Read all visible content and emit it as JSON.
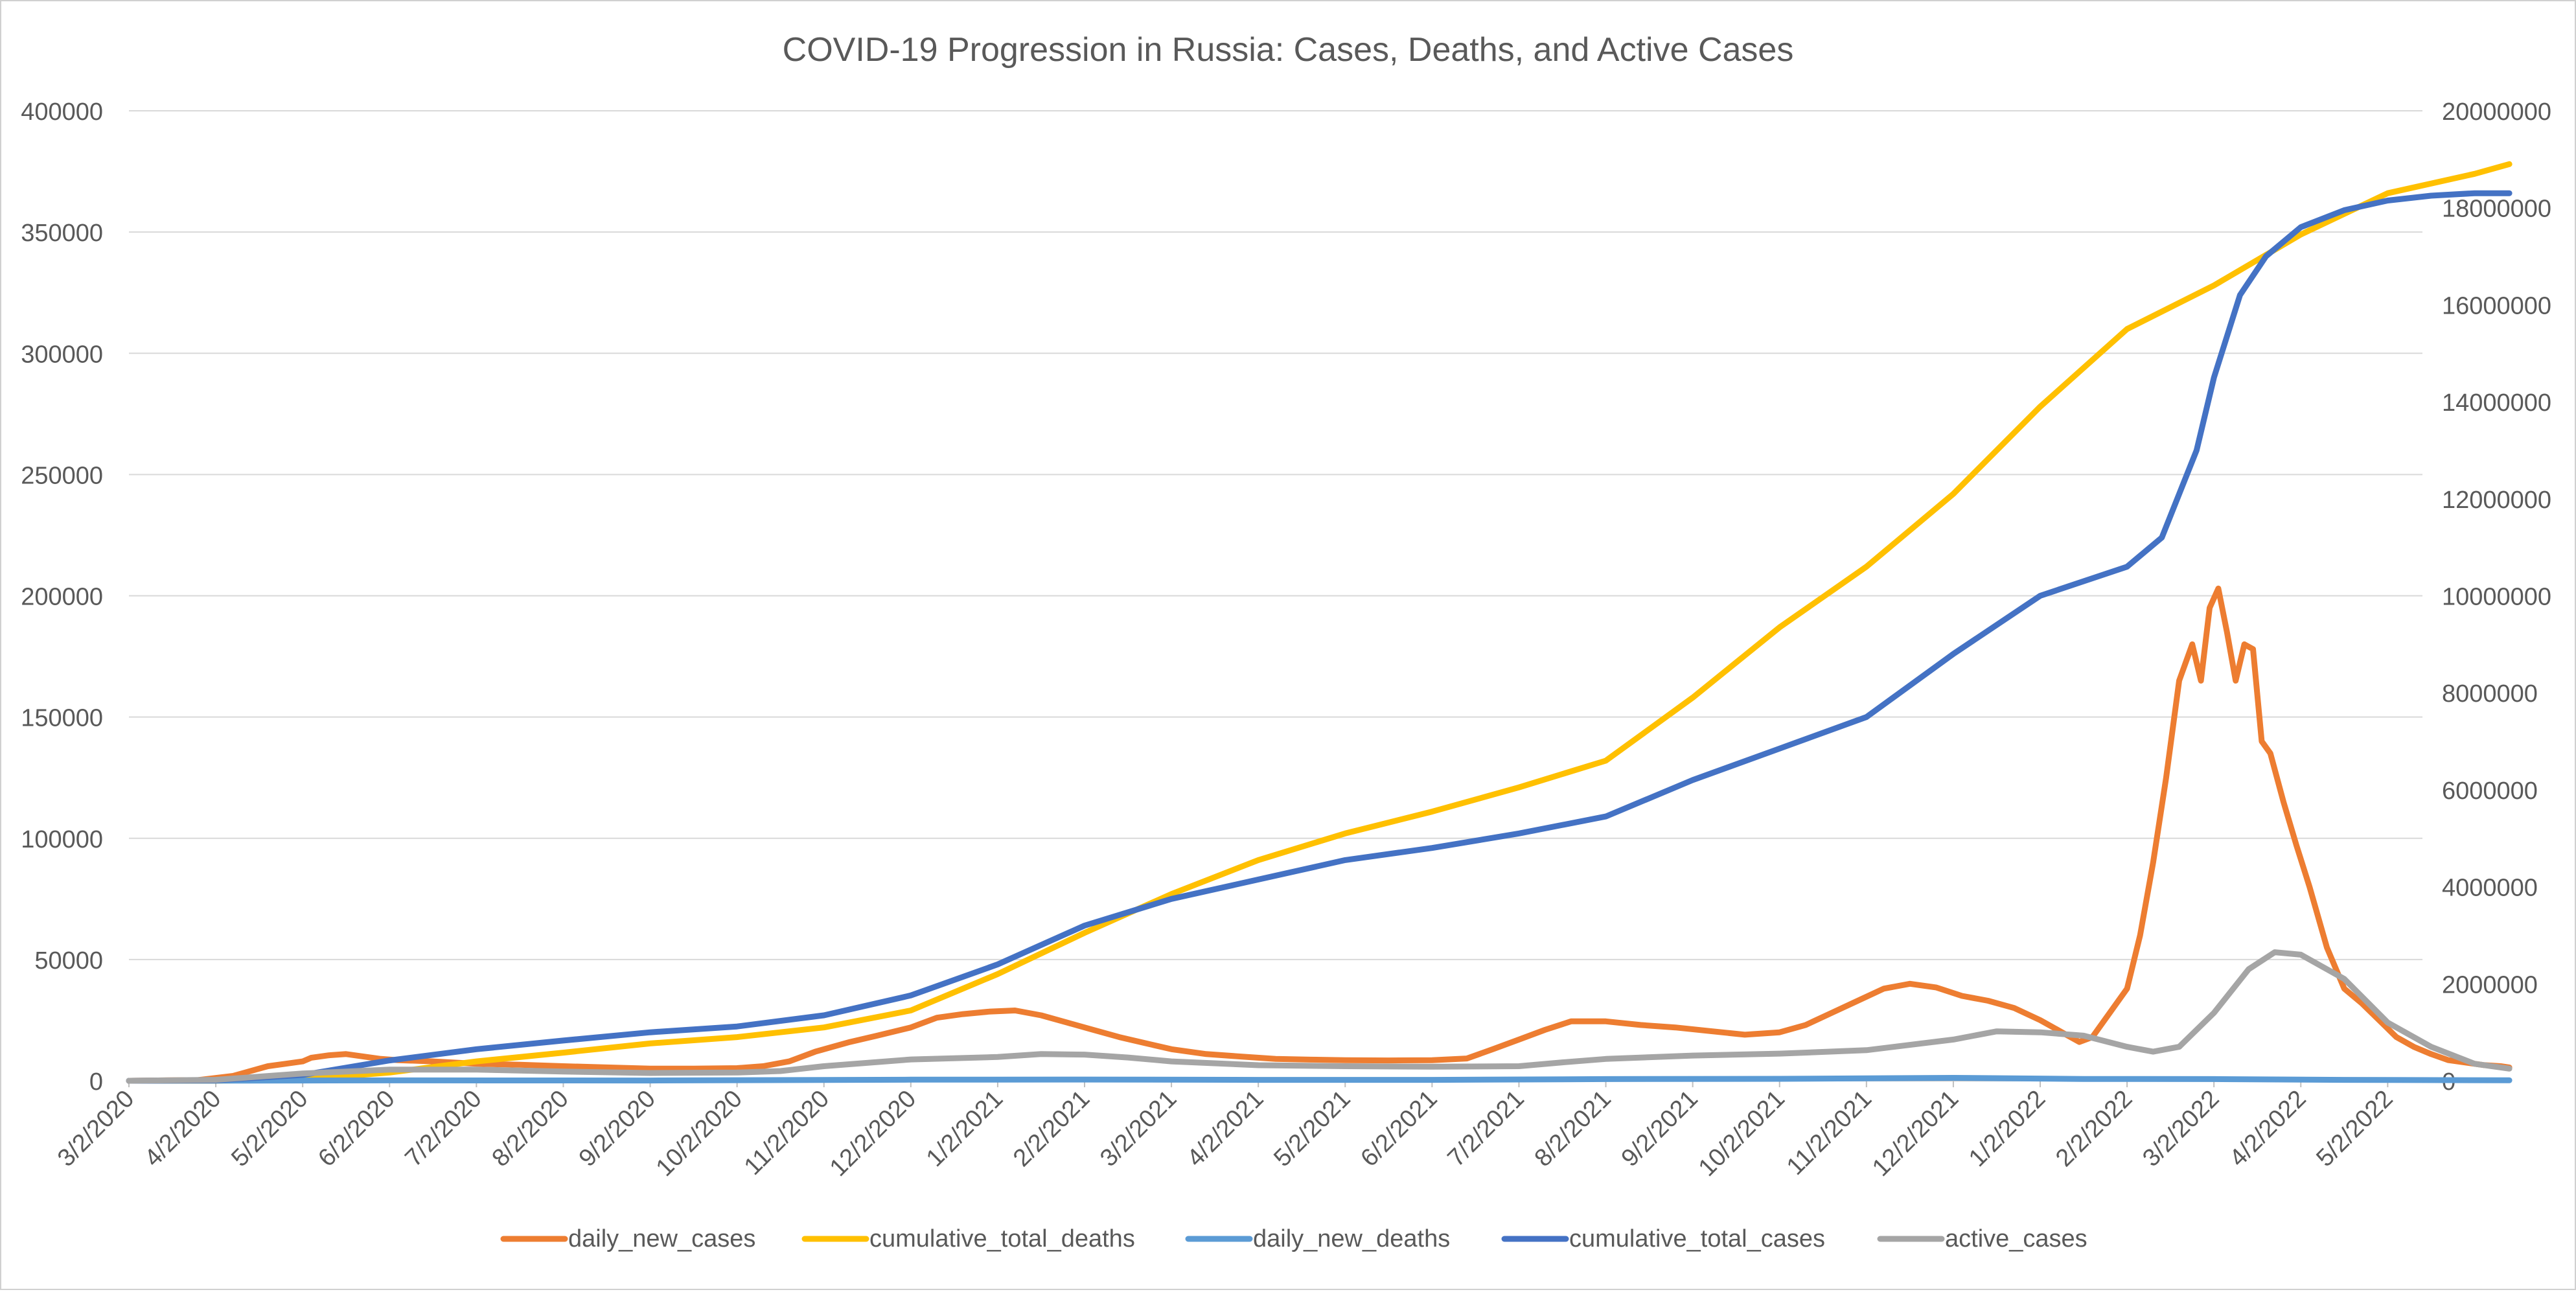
{
  "chart_data": {
    "type": "line",
    "title": "COVID-19 Progression in Russia: Cases, Deaths, and Active Cases",
    "x_tick_labels": [
      "3/2/2020",
      "4/2/2020",
      "5/2/2020",
      "6/2/2020",
      "7/2/2020",
      "8/2/2020",
      "9/2/2020",
      "10/2/2020",
      "11/2/2020",
      "12/2/2020",
      "1/2/2021",
      "2/2/2021",
      "3/2/2021",
      "4/2/2021",
      "5/2/2021",
      "6/2/2021",
      "7/2/2021",
      "8/2/2021",
      "9/2/2021",
      "10/2/2021",
      "11/2/2021",
      "12/2/2021",
      "1/2/2022",
      "2/2/2022",
      "3/2/2022",
      "4/2/2022",
      "5/2/2022"
    ],
    "x_unit": "months since 3/2/2020",
    "x_range": [
      0,
      26.4
    ],
    "y_left": {
      "min": 0,
      "max": 400000,
      "ticks": [
        0,
        50000,
        100000,
        150000,
        200000,
        250000,
        300000,
        350000,
        400000
      ]
    },
    "y_right": {
      "min": 0,
      "max": 20000000,
      "ticks": [
        0,
        2000000,
        4000000,
        6000000,
        8000000,
        10000000,
        12000000,
        14000000,
        16000000,
        18000000,
        20000000
      ]
    },
    "grid": true,
    "legend_position": "bottom",
    "series": [
      {
        "name": "daily_new_cases",
        "axis": "left",
        "color": "#ED7D31",
        "points": [
          [
            0,
            0
          ],
          [
            0.8,
            300
          ],
          [
            1.2,
            2000
          ],
          [
            1.6,
            6000
          ],
          [
            1.8,
            7000
          ],
          [
            2.0,
            8000
          ],
          [
            2.1,
            9500
          ],
          [
            2.3,
            10500
          ],
          [
            2.5,
            11000
          ],
          [
            2.7,
            10000
          ],
          [
            2.9,
            9000
          ],
          [
            3.1,
            8500
          ],
          [
            3.5,
            8000
          ],
          [
            4.0,
            7000
          ],
          [
            4.5,
            6600
          ],
          [
            5.0,
            6000
          ],
          [
            5.5,
            5500
          ],
          [
            6.0,
            5000
          ],
          [
            6.5,
            5000
          ],
          [
            7.0,
            5200
          ],
          [
            7.3,
            6000
          ],
          [
            7.6,
            8000
          ],
          [
            7.9,
            12000
          ],
          [
            8.3,
            16000
          ],
          [
            8.6,
            18500
          ],
          [
            9.0,
            22000
          ],
          [
            9.3,
            26000
          ],
          [
            9.6,
            27500
          ],
          [
            9.9,
            28500
          ],
          [
            10.2,
            29000
          ],
          [
            10.5,
            27000
          ],
          [
            10.8,
            24000
          ],
          [
            11.1,
            21000
          ],
          [
            11.4,
            18000
          ],
          [
            11.7,
            15500
          ],
          [
            12.0,
            13000
          ],
          [
            12.4,
            11000
          ],
          [
            12.8,
            10000
          ],
          [
            13.2,
            9000
          ],
          [
            13.6,
            8700
          ],
          [
            14.0,
            8500
          ],
          [
            14.5,
            8400
          ],
          [
            15.0,
            8500
          ],
          [
            15.4,
            9200
          ],
          [
            15.7,
            13000
          ],
          [
            16.0,
            17000
          ],
          [
            16.3,
            21000
          ],
          [
            16.6,
            24500
          ],
          [
            17.0,
            24500
          ],
          [
            17.4,
            23000
          ],
          [
            17.8,
            22000
          ],
          [
            18.2,
            20500
          ],
          [
            18.6,
            19000
          ],
          [
            19.0,
            20000
          ],
          [
            19.3,
            23000
          ],
          [
            19.6,
            28000
          ],
          [
            19.9,
            33000
          ],
          [
            20.2,
            38000
          ],
          [
            20.5,
            40000
          ],
          [
            20.8,
            38500
          ],
          [
            21.1,
            35000
          ],
          [
            21.4,
            33000
          ],
          [
            21.7,
            30000
          ],
          [
            22.0,
            25000
          ],
          [
            22.3,
            19000
          ],
          [
            22.45,
            16000
          ],
          [
            22.6,
            18000
          ],
          [
            22.8,
            28000
          ],
          [
            23.0,
            38000
          ],
          [
            23.15,
            60000
          ],
          [
            23.3,
            90000
          ],
          [
            23.45,
            125000
          ],
          [
            23.6,
            165000
          ],
          [
            23.75,
            180000
          ],
          [
            23.85,
            165000
          ],
          [
            23.95,
            195000
          ],
          [
            24.05,
            203000
          ],
          [
            24.15,
            185000
          ],
          [
            24.25,
            165000
          ],
          [
            24.35,
            180000
          ],
          [
            24.45,
            178000
          ],
          [
            24.55,
            140000
          ],
          [
            24.65,
            135000
          ],
          [
            24.8,
            115000
          ],
          [
            24.95,
            97000
          ],
          [
            25.1,
            80000
          ],
          [
            25.3,
            55000
          ],
          [
            25.5,
            38000
          ],
          [
            25.7,
            32000
          ],
          [
            25.9,
            25000
          ],
          [
            26.1,
            18000
          ],
          [
            26.3,
            14000
          ],
          [
            26.5,
            11000
          ],
          [
            26.7,
            8500
          ],
          [
            26.9,
            7500
          ],
          [
            27.1,
            6500
          ],
          [
            27.3,
            6000
          ],
          [
            27.4,
            5500
          ]
        ]
      },
      {
        "name": "cumulative_total_deaths",
        "axis": "right",
        "color": "#FFC000",
        "points": [
          [
            0,
            0
          ],
          [
            1.0,
            2000
          ],
          [
            2.0,
            25000
          ],
          [
            3.0,
            170000
          ],
          [
            4.0,
            400000
          ],
          [
            5.0,
            580000
          ],
          [
            6.0,
            770000
          ],
          [
            7.0,
            900000
          ],
          [
            8.0,
            1100000
          ],
          [
            9.0,
            1450000
          ],
          [
            10.0,
            2200000
          ],
          [
            11.0,
            3050000
          ],
          [
            12.0,
            3850000
          ],
          [
            13.0,
            4550000
          ],
          [
            14.0,
            5100000
          ],
          [
            15.0,
            5550000
          ],
          [
            16.0,
            6050000
          ],
          [
            17.0,
            6600000
          ],
          [
            18.0,
            7900000
          ],
          [
            19.0,
            9350000
          ],
          [
            20.0,
            10600000
          ],
          [
            21.0,
            12100000
          ],
          [
            22.0,
            13900000
          ],
          [
            23.0,
            15500000
          ],
          [
            24.0,
            16400000
          ],
          [
            25.0,
            17450000
          ],
          [
            26.0,
            18300000
          ],
          [
            27.0,
            18700000
          ],
          [
            27.4,
            18900000
          ]
        ]
      },
      {
        "name": "daily_new_deaths",
        "axis": "left",
        "color": "#5B9BD5",
        "points": [
          [
            0,
            0
          ],
          [
            2.0,
            100
          ],
          [
            3.0,
            160
          ],
          [
            6.0,
            120
          ],
          [
            9.0,
            450
          ],
          [
            11.0,
            500
          ],
          [
            13.0,
            380
          ],
          [
            15.0,
            370
          ],
          [
            17.0,
            700
          ],
          [
            19.0,
            800
          ],
          [
            21.0,
            1200
          ],
          [
            22.5,
            750
          ],
          [
            24.0,
            700
          ],
          [
            25.5,
            380
          ],
          [
            27.4,
            180
          ]
        ]
      },
      {
        "name": "cumulative_total_cases",
        "axis": "right",
        "color": "#4472C4",
        "points": [
          [
            0,
            0
          ],
          [
            1.0,
            10000
          ],
          [
            2.0,
            120000
          ],
          [
            3.0,
            420000
          ],
          [
            4.0,
            650000
          ],
          [
            5.0,
            830000
          ],
          [
            6.0,
            1000000
          ],
          [
            7.0,
            1120000
          ],
          [
            8.0,
            1350000
          ],
          [
            9.0,
            1760000
          ],
          [
            10.0,
            2400000
          ],
          [
            11.0,
            3200000
          ],
          [
            12.0,
            3750000
          ],
          [
            13.0,
            4150000
          ],
          [
            14.0,
            4550000
          ],
          [
            15.0,
            4800000
          ],
          [
            16.0,
            5100000
          ],
          [
            17.0,
            5450000
          ],
          [
            18.0,
            6200000
          ],
          [
            19.0,
            6850000
          ],
          [
            20.0,
            7500000
          ],
          [
            21.0,
            8800000
          ],
          [
            22.0,
            10000000
          ],
          [
            23.0,
            10600000
          ],
          [
            23.4,
            11200000
          ],
          [
            23.8,
            13000000
          ],
          [
            24.0,
            14500000
          ],
          [
            24.3,
            16200000
          ],
          [
            24.6,
            17000000
          ],
          [
            25.0,
            17600000
          ],
          [
            25.5,
            17950000
          ],
          [
            26.0,
            18150000
          ],
          [
            26.5,
            18250000
          ],
          [
            27.0,
            18300000
          ],
          [
            27.4,
            18300000
          ]
        ]
      },
      {
        "name": "active_cases",
        "axis": "right",
        "color": "#A5A5A5",
        "points": [
          [
            0,
            0
          ],
          [
            1.0,
            20000
          ],
          [
            2.0,
            150000
          ],
          [
            3.0,
            230000
          ],
          [
            4.0,
            230000
          ],
          [
            5.0,
            190000
          ],
          [
            6.0,
            160000
          ],
          [
            7.0,
            170000
          ],
          [
            7.5,
            200000
          ],
          [
            8.0,
            300000
          ],
          [
            9.0,
            440000
          ],
          [
            10.0,
            490000
          ],
          [
            10.5,
            550000
          ],
          [
            11.0,
            540000
          ],
          [
            11.5,
            480000
          ],
          [
            12.0,
            400000
          ],
          [
            13.0,
            320000
          ],
          [
            14.0,
            300000
          ],
          [
            15.0,
            290000
          ],
          [
            16.0,
            300000
          ],
          [
            16.5,
            380000
          ],
          [
            17.0,
            450000
          ],
          [
            18.0,
            520000
          ],
          [
            19.0,
            560000
          ],
          [
            20.0,
            630000
          ],
          [
            21.0,
            850000
          ],
          [
            21.5,
            1020000
          ],
          [
            22.0,
            1000000
          ],
          [
            22.5,
            930000
          ],
          [
            23.0,
            700000
          ],
          [
            23.3,
            600000
          ],
          [
            23.6,
            700000
          ],
          [
            24.0,
            1400000
          ],
          [
            24.4,
            2300000
          ],
          [
            24.7,
            2650000
          ],
          [
            25.0,
            2600000
          ],
          [
            25.5,
            2100000
          ],
          [
            26.0,
            1200000
          ],
          [
            26.5,
            700000
          ],
          [
            27.0,
            350000
          ],
          [
            27.4,
            250000
          ]
        ]
      }
    ]
  }
}
